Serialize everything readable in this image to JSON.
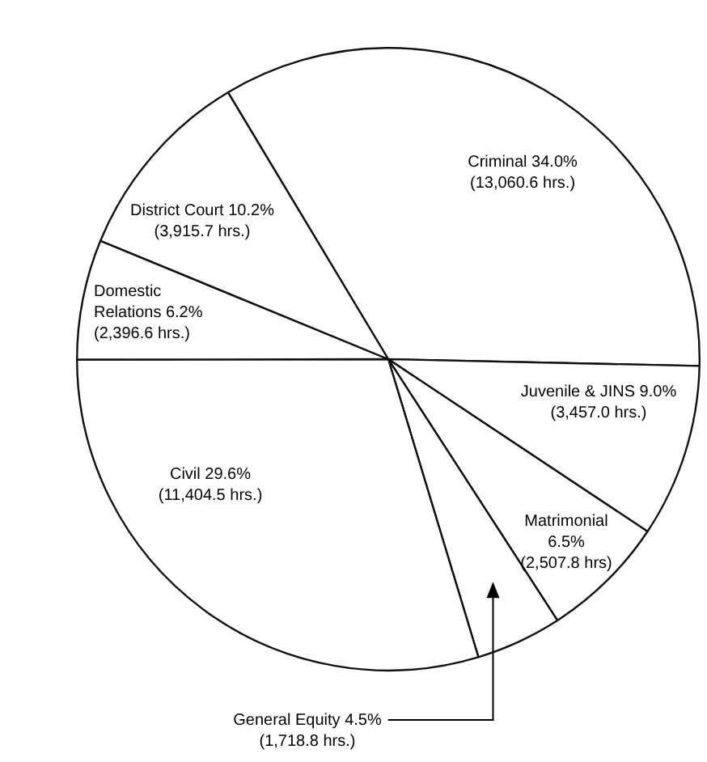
{
  "chart_data": {
    "type": "pie",
    "legend": false,
    "categories": [
      "Criminal 34.0%",
      "Juvenile & JINS 9.0%",
      "Matrimonial 6.5%",
      "General Equity 4.5%",
      "Civil 29.6%",
      "Domestic Relations 6.2%",
      "District Court 10.2%"
    ],
    "values": [
      13060.6,
      3457.0,
      2507.8,
      1718.8,
      11404.5,
      2396.6,
      3915.7
    ],
    "value_labels": [
      "(13,060.6 hrs.)",
      "(3,457.0 hrs.)",
      "(2,507.8 hrs)",
      "(1,718.8 hrs.)",
      "(11,404.5 hrs.)",
      "(2,396.6 hrs.)",
      "(3,915.7 hrs.)"
    ],
    "colors": [
      "#ffffff",
      "#ffffff",
      "#ffffff",
      "#ffffff",
      "#ffffff",
      "#ffffff",
      "#ffffff"
    ]
  }
}
